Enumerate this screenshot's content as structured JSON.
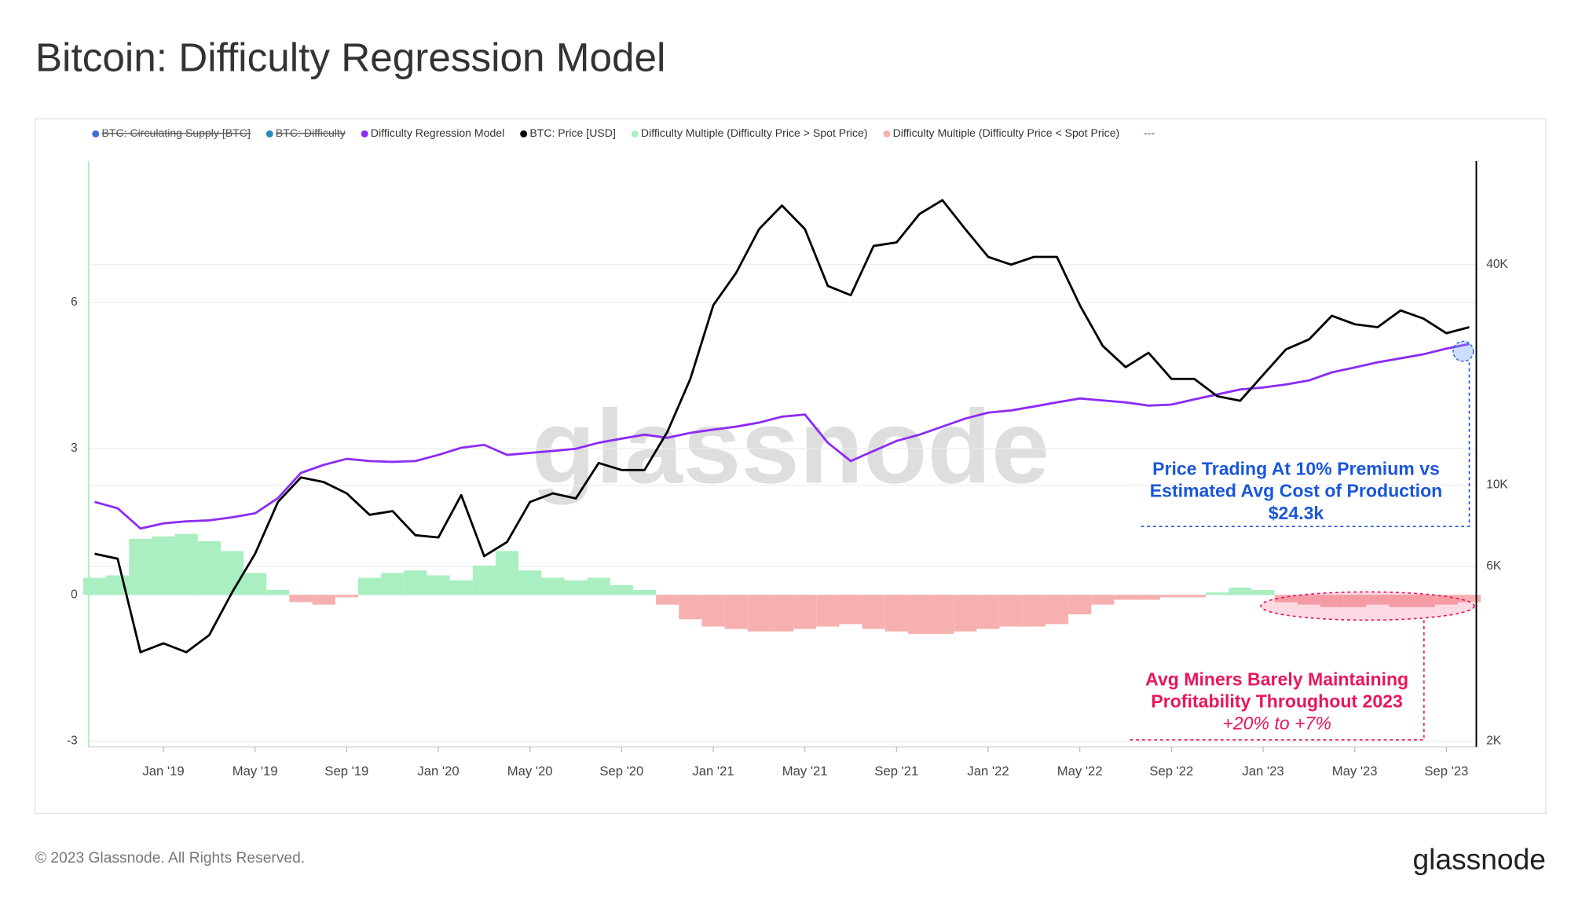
{
  "chart_data": {
    "type": "line",
    "title": "Bitcoin: Difficulty Regression Model",
    "watermark": "glassnode",
    "hidden_series": [
      {
        "name": "BTC: Circulating Supply [BTC]",
        "color": "#3a6fd8"
      },
      {
        "name": "BTC: Difficulty",
        "color": "#2a8ab8"
      }
    ],
    "legend_more": "---",
    "x": [
      "2018-10",
      "2018-11",
      "2018-12",
      "2019-01",
      "2019-02",
      "2019-03",
      "2019-04",
      "2019-05",
      "2019-06",
      "2019-07",
      "2019-08",
      "2019-09",
      "2019-10",
      "2019-11",
      "2019-12",
      "2020-01",
      "2020-02",
      "2020-03",
      "2020-04",
      "2020-05",
      "2020-06",
      "2020-07",
      "2020-08",
      "2020-09",
      "2020-10",
      "2020-11",
      "2020-12",
      "2021-01",
      "2021-02",
      "2021-03",
      "2021-04",
      "2021-05",
      "2021-06",
      "2021-07",
      "2021-08",
      "2021-09",
      "2021-10",
      "2021-11",
      "2021-12",
      "2022-01",
      "2022-02",
      "2022-03",
      "2022-04",
      "2022-05",
      "2022-06",
      "2022-07",
      "2022-08",
      "2022-09",
      "2022-10",
      "2022-11",
      "2022-12",
      "2023-01",
      "2023-02",
      "2023-03",
      "2023-04",
      "2023-05",
      "2023-06",
      "2023-07",
      "2023-08",
      "2023-09",
      "2023-10"
    ],
    "series": [
      {
        "name": "Difficulty Regression Model",
        "color": "#8b2cf5",
        "type": "line",
        "axis": "y2",
        "values": [
          9000,
          8650,
          7620,
          7870,
          7970,
          8020,
          8170,
          8380,
          9220,
          10800,
          11360,
          11800,
          11640,
          11580,
          11640,
          12100,
          12650,
          12890,
          12100,
          12250,
          12400,
          12570,
          13060,
          13400,
          13740,
          13470,
          13900,
          14180,
          14450,
          14820,
          15390,
          15590,
          13060,
          11640,
          12400,
          13210,
          13740,
          14450,
          15200,
          15780,
          16000,
          16400,
          16830,
          17250,
          17040,
          16830,
          16500,
          16600,
          17150,
          17700,
          18250,
          18490,
          18840,
          19320,
          20320,
          20970,
          21650,
          22210,
          22780,
          23600,
          24300
        ]
      },
      {
        "name": "BTC: Price [USD]",
        "color": "#000000",
        "type": "line",
        "axis": "y2",
        "values": [
          6500,
          6300,
          3500,
          3700,
          3500,
          3900,
          5100,
          6500,
          9000,
          10500,
          10200,
          9500,
          8300,
          8500,
          7300,
          7200,
          9400,
          6400,
          7000,
          9000,
          9500,
          9200,
          11500,
          11000,
          11000,
          14000,
          19500,
          31000,
          38000,
          50000,
          58000,
          50000,
          35000,
          33000,
          45000,
          46000,
          55000,
          60000,
          50000,
          42000,
          40000,
          42000,
          42000,
          31000,
          24000,
          21000,
          23000,
          19500,
          19500,
          17500,
          17000,
          20000,
          23500,
          25000,
          29000,
          27500,
          27000,
          30000,
          28500,
          26000,
          27000
        ]
      },
      {
        "name": "Difficulty Multiple (Difficulty Price > Spot Price)",
        "color": "#a9efc1",
        "type": "bar",
        "axis": "y",
        "values": [
          0.35,
          0.4,
          1.15,
          1.2,
          1.25,
          1.1,
          0.9,
          0.45,
          0.1,
          null,
          null,
          null,
          0.35,
          0.45,
          0.5,
          0.4,
          0.3,
          0.6,
          0.9,
          0.5,
          0.35,
          0.3,
          0.35,
          0.2,
          0.1,
          null,
          null,
          null,
          null,
          null,
          null,
          null,
          null,
          null,
          null,
          null,
          null,
          null,
          null,
          null,
          null,
          null,
          null,
          null,
          null,
          null,
          null,
          null,
          null,
          0.05,
          0.15,
          0.1,
          null,
          null,
          null,
          null,
          null,
          null,
          null,
          null,
          null
        ]
      },
      {
        "name": "Difficulty Multiple (Difficulty Price < Spot Price)",
        "color": "#f7b0b0",
        "type": "bar",
        "axis": "y",
        "values": [
          null,
          null,
          null,
          null,
          null,
          null,
          null,
          null,
          null,
          -0.15,
          -0.2,
          -0.05,
          null,
          null,
          null,
          null,
          null,
          null,
          null,
          null,
          null,
          null,
          null,
          null,
          null,
          -0.2,
          -0.5,
          -0.65,
          -0.7,
          -0.75,
          -0.75,
          -0.7,
          -0.65,
          -0.6,
          -0.7,
          -0.75,
          -0.8,
          -0.8,
          -0.75,
          -0.7,
          -0.65,
          -0.65,
          -0.6,
          -0.4,
          -0.2,
          -0.1,
          -0.1,
          -0.05,
          -0.05,
          null,
          null,
          null,
          -0.15,
          -0.2,
          -0.25,
          -0.25,
          -0.2,
          -0.25,
          -0.25,
          -0.2,
          -0.15
        ]
      }
    ],
    "xlim": [
      "2018-10",
      "2023-10"
    ],
    "xticks": [
      {
        "value": "2019-01",
        "label": "Jan '19"
      },
      {
        "value": "2019-05",
        "label": "May '19"
      },
      {
        "value": "2019-09",
        "label": "Sep '19"
      },
      {
        "value": "2020-01",
        "label": "Jan '20"
      },
      {
        "value": "2020-05",
        "label": "May '20"
      },
      {
        "value": "2020-09",
        "label": "Sep '20"
      },
      {
        "value": "2021-01",
        "label": "Jan '21"
      },
      {
        "value": "2021-05",
        "label": "May '21"
      },
      {
        "value": "2021-09",
        "label": "Sep '21"
      },
      {
        "value": "2022-01",
        "label": "Jan '22"
      },
      {
        "value": "2022-05",
        "label": "May '22"
      },
      {
        "value": "2022-09",
        "label": "Sep '22"
      },
      {
        "value": "2023-01",
        "label": "Jan '23"
      },
      {
        "value": "2023-05",
        "label": "May '23"
      },
      {
        "value": "2023-09",
        "label": "Sep '23"
      }
    ],
    "ylim": [
      -3.12,
      8.9
    ],
    "yticks": [
      -3,
      0,
      3,
      6
    ],
    "y2lim": [
      1930,
      76700
    ],
    "y2log": true,
    "y2ticks": [
      {
        "value": 2000,
        "label": "2K"
      },
      {
        "value": 6000,
        "label": "6K"
      },
      {
        "value": 10000,
        "label": "10K"
      },
      {
        "value": 40000,
        "label": "40K"
      }
    ],
    "grid": true,
    "annotations": [
      {
        "lines": [
          "Price Trading At 10% Premium vs",
          "Estimated Avg Cost of Production",
          "$24.3k"
        ],
        "color": "#1a56db"
      },
      {
        "lines": [
          "Avg Miners Barely Maintaining",
          "Profitability Throughout 2023",
          "+20% to +7%"
        ],
        "color": "#e8175d"
      }
    ]
  },
  "footer": {
    "copyright": "© 2023 Glassnode. All Rights Reserved.",
    "logo": "glassnode"
  }
}
